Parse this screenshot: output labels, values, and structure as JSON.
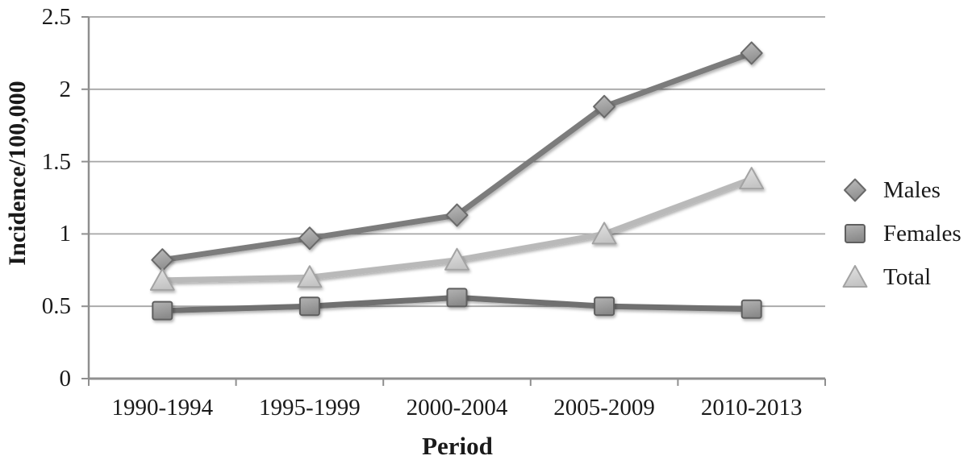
{
  "chart_data": {
    "type": "line",
    "title": "",
    "xlabel": "Period",
    "ylabel": "Incidence/100,000",
    "categories": [
      "1990-1994",
      "1995-1999",
      "2000-2004",
      "2005-2009",
      "2010-2013"
    ],
    "series": [
      {
        "name": "Males",
        "marker": "diamond",
        "values": [
          0.82,
          0.97,
          1.13,
          1.88,
          2.25
        ],
        "line_color": "#7b7b7b",
        "marker_fill": "#8f8f8f",
        "marker_fill_light": "#bdbdbd",
        "marker_stroke": "#6a6a6a"
      },
      {
        "name": "Females",
        "marker": "square",
        "values": [
          0.47,
          0.5,
          0.56,
          0.5,
          0.48
        ],
        "line_color": "#6f6f6f",
        "marker_fill": "#8a8a8a",
        "marker_fill_light": "#b3b3b3",
        "marker_stroke": "#5f5f5f"
      },
      {
        "name": "Total",
        "marker": "triangle",
        "values": [
          0.68,
          0.7,
          0.82,
          1.0,
          1.38
        ],
        "line_color": "#b9b9b9",
        "marker_fill": "#c4c4c4",
        "marker_fill_light": "#e4e4e4",
        "marker_stroke": "#a3a3a3"
      }
    ],
    "ylim": [
      0,
      2.5
    ],
    "yticks": [
      "0",
      "0.5",
      "1",
      "1.5",
      "2",
      "2.5"
    ],
    "grid": true,
    "legend_position": "right",
    "background": "#ffffff",
    "grid_color": "#a6a6a6",
    "axis_color": "#8f8f8f",
    "text_color": "#1a1a1a"
  }
}
